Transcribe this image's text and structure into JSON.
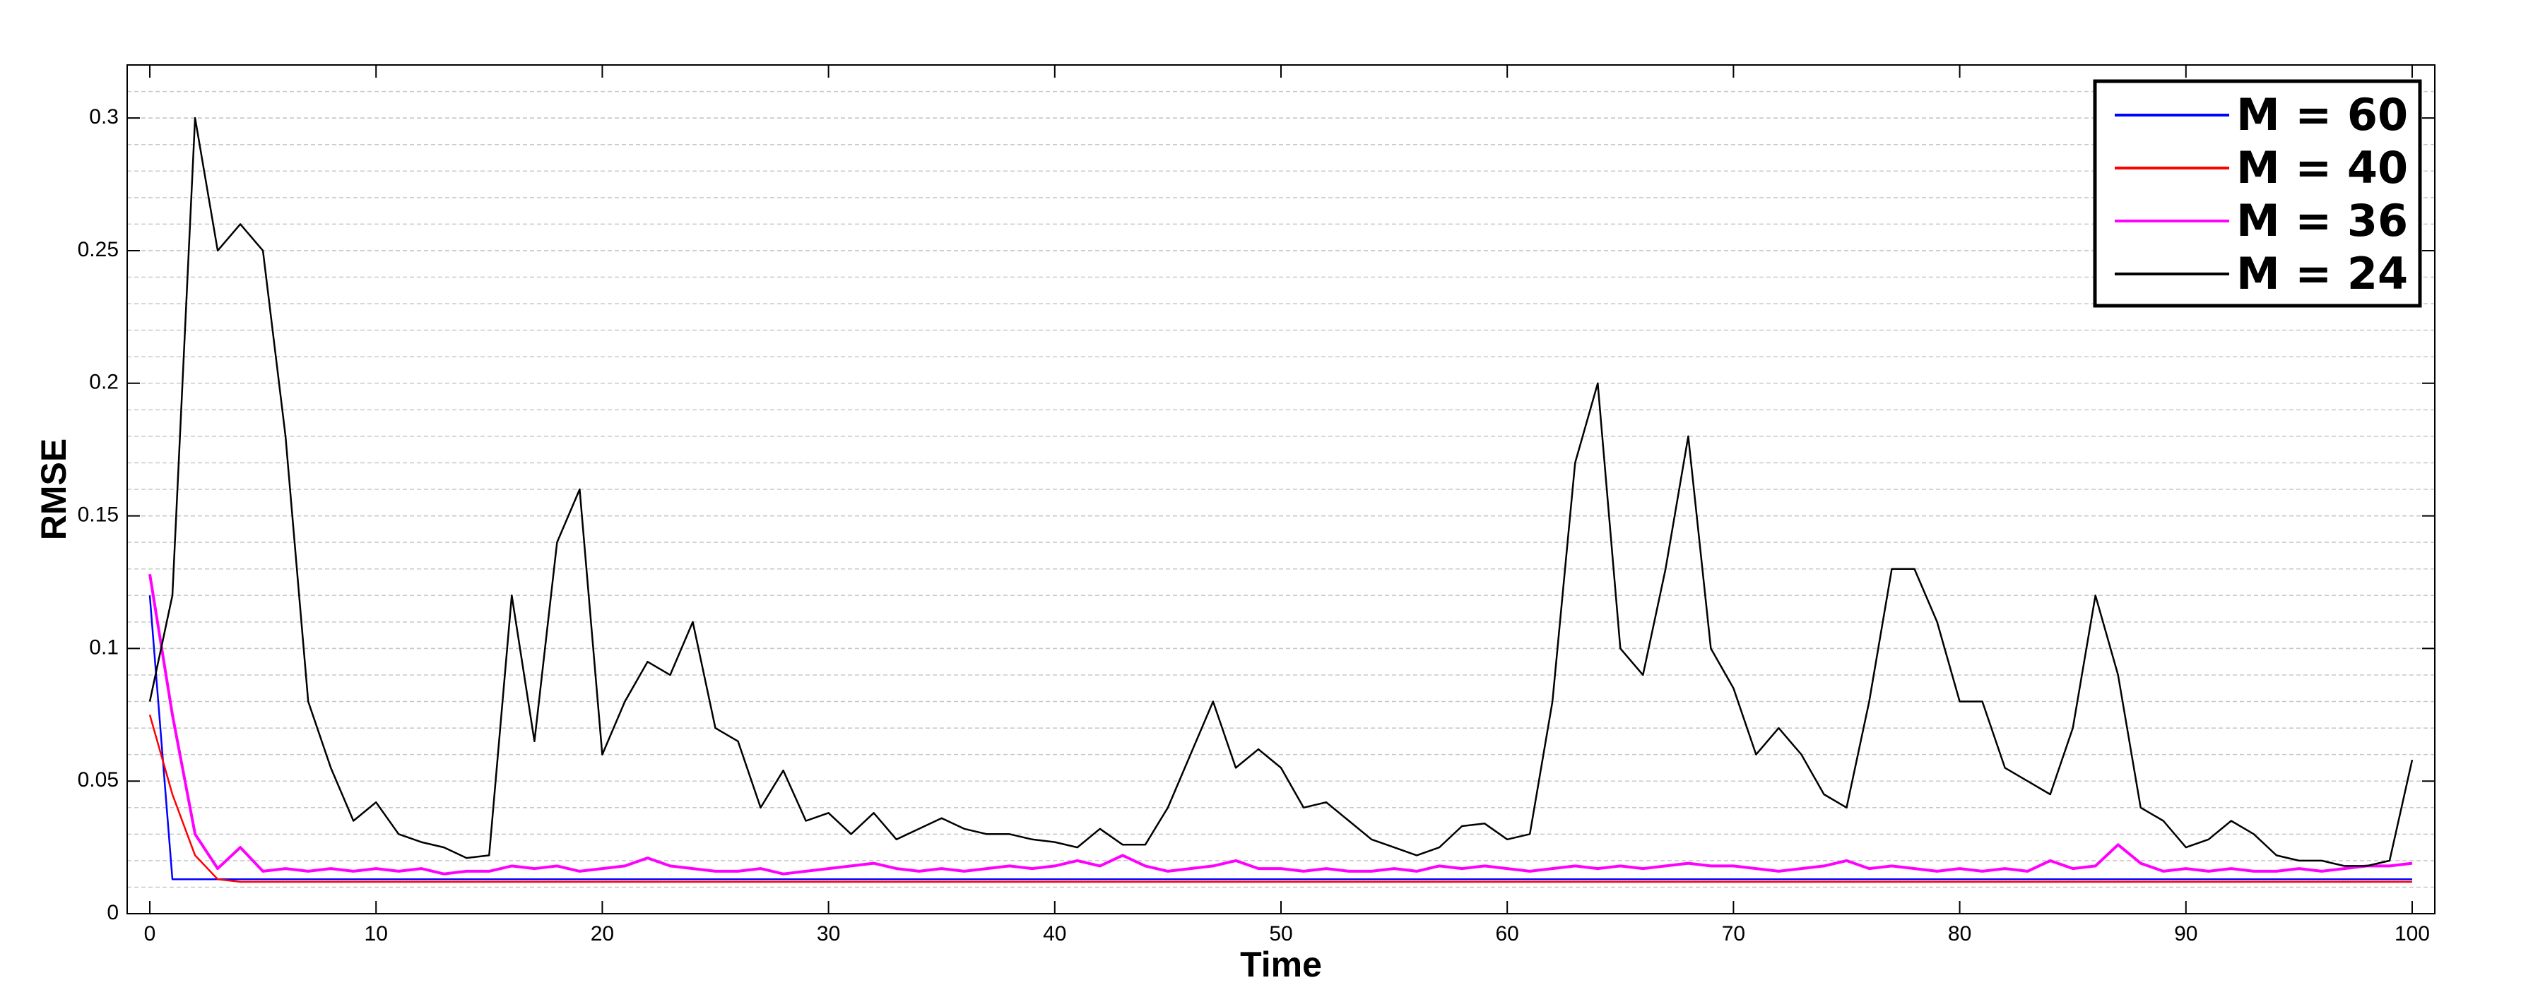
{
  "chart_data": {
    "type": "line",
    "xlabel": "Time",
    "ylabel": "RMSE",
    "x": [
      0,
      1,
      2,
      3,
      4,
      5,
      6,
      7,
      8,
      9,
      10,
      11,
      12,
      13,
      14,
      15,
      16,
      17,
      18,
      19,
      20,
      21,
      22,
      23,
      24,
      25,
      26,
      27,
      28,
      29,
      30,
      31,
      32,
      33,
      34,
      35,
      36,
      37,
      38,
      39,
      40,
      41,
      42,
      43,
      44,
      45,
      46,
      47,
      48,
      49,
      50,
      51,
      52,
      53,
      54,
      55,
      56,
      57,
      58,
      59,
      60,
      61,
      62,
      63,
      64,
      65,
      66,
      67,
      68,
      69,
      70,
      71,
      72,
      73,
      74,
      75,
      76,
      77,
      78,
      79,
      80,
      81,
      82,
      83,
      84,
      85,
      86,
      87,
      88,
      89,
      90,
      91,
      92,
      93,
      94,
      95,
      96,
      97,
      98,
      99,
      100
    ],
    "series": [
      {
        "name": "M = 60",
        "color": "#0000ff",
        "values": [
          0.12,
          0.013,
          0.013,
          0.013,
          0.013,
          0.013,
          0.013,
          0.013,
          0.013,
          0.013,
          0.013,
          0.013,
          0.013,
          0.013,
          0.013,
          0.013,
          0.013,
          0.013,
          0.013,
          0.013,
          0.013,
          0.013,
          0.013,
          0.013,
          0.013,
          0.013,
          0.013,
          0.013,
          0.013,
          0.013,
          0.013,
          0.013,
          0.013,
          0.013,
          0.013,
          0.013,
          0.013,
          0.013,
          0.013,
          0.013,
          0.013,
          0.013,
          0.013,
          0.013,
          0.013,
          0.013,
          0.013,
          0.013,
          0.013,
          0.013,
          0.013,
          0.013,
          0.013,
          0.013,
          0.013,
          0.013,
          0.013,
          0.013,
          0.013,
          0.013,
          0.013,
          0.013,
          0.013,
          0.013,
          0.013,
          0.013,
          0.013,
          0.013,
          0.013,
          0.013,
          0.013,
          0.013,
          0.013,
          0.013,
          0.013,
          0.013,
          0.013,
          0.013,
          0.013,
          0.013,
          0.013,
          0.013,
          0.013,
          0.013,
          0.013,
          0.013,
          0.013,
          0.013,
          0.013,
          0.013,
          0.013,
          0.013,
          0.013,
          0.013,
          0.013,
          0.013,
          0.013,
          0.013,
          0.013,
          0.013,
          0.013
        ]
      },
      {
        "name": "M = 40",
        "color": "#ff0000",
        "values": [
          0.075,
          0.045,
          0.022,
          0.013,
          0.012,
          0.012,
          0.012,
          0.012,
          0.012,
          0.012,
          0.012,
          0.012,
          0.012,
          0.012,
          0.012,
          0.012,
          0.012,
          0.012,
          0.012,
          0.012,
          0.012,
          0.012,
          0.012,
          0.012,
          0.012,
          0.012,
          0.012,
          0.012,
          0.012,
          0.012,
          0.012,
          0.012,
          0.012,
          0.012,
          0.012,
          0.012,
          0.012,
          0.012,
          0.012,
          0.012,
          0.012,
          0.012,
          0.012,
          0.012,
          0.012,
          0.012,
          0.012,
          0.012,
          0.012,
          0.012,
          0.012,
          0.012,
          0.012,
          0.012,
          0.012,
          0.012,
          0.012,
          0.012,
          0.012,
          0.012,
          0.012,
          0.012,
          0.012,
          0.012,
          0.012,
          0.012,
          0.012,
          0.012,
          0.012,
          0.012,
          0.012,
          0.012,
          0.012,
          0.012,
          0.012,
          0.012,
          0.012,
          0.012,
          0.012,
          0.012,
          0.012,
          0.012,
          0.012,
          0.012,
          0.012,
          0.012,
          0.012,
          0.012,
          0.012,
          0.012,
          0.012,
          0.012,
          0.012,
          0.012,
          0.012,
          0.012,
          0.012,
          0.012,
          0.012,
          0.012,
          0.012
        ]
      },
      {
        "name": "M = 36",
        "color": "#ff00ff",
        "values": [
          0.128,
          0.075,
          0.03,
          0.017,
          0.025,
          0.016,
          0.017,
          0.016,
          0.017,
          0.016,
          0.017,
          0.016,
          0.017,
          0.015,
          0.016,
          0.016,
          0.018,
          0.017,
          0.018,
          0.016,
          0.017,
          0.018,
          0.021,
          0.018,
          0.017,
          0.016,
          0.016,
          0.017,
          0.015,
          0.016,
          0.017,
          0.018,
          0.019,
          0.017,
          0.016,
          0.017,
          0.016,
          0.017,
          0.018,
          0.017,
          0.018,
          0.02,
          0.018,
          0.022,
          0.018,
          0.016,
          0.017,
          0.018,
          0.02,
          0.017,
          0.017,
          0.016,
          0.017,
          0.016,
          0.016,
          0.017,
          0.016,
          0.018,
          0.017,
          0.018,
          0.017,
          0.016,
          0.017,
          0.018,
          0.017,
          0.018,
          0.017,
          0.018,
          0.019,
          0.018,
          0.018,
          0.017,
          0.016,
          0.017,
          0.018,
          0.02,
          0.017,
          0.018,
          0.017,
          0.016,
          0.017,
          0.016,
          0.017,
          0.016,
          0.02,
          0.017,
          0.018,
          0.026,
          0.019,
          0.016,
          0.017,
          0.016,
          0.017,
          0.016,
          0.016,
          0.017,
          0.016,
          0.017,
          0.018,
          0.018,
          0.019
        ]
      },
      {
        "name": "M = 24",
        "color": "#000000",
        "values": [
          0.08,
          0.12,
          0.3,
          0.25,
          0.26,
          0.25,
          0.18,
          0.08,
          0.055,
          0.035,
          0.042,
          0.03,
          0.027,
          0.025,
          0.021,
          0.022,
          0.12,
          0.065,
          0.14,
          0.16,
          0.06,
          0.08,
          0.095,
          0.09,
          0.11,
          0.07,
          0.065,
          0.04,
          0.054,
          0.035,
          0.038,
          0.03,
          0.038,
          0.028,
          0.032,
          0.036,
          0.032,
          0.03,
          0.03,
          0.028,
          0.027,
          0.025,
          0.032,
          0.026,
          0.026,
          0.04,
          0.06,
          0.08,
          0.055,
          0.062,
          0.055,
          0.04,
          0.042,
          0.035,
          0.028,
          0.025,
          0.022,
          0.025,
          0.033,
          0.034,
          0.028,
          0.03,
          0.08,
          0.17,
          0.2,
          0.1,
          0.09,
          0.13,
          0.18,
          0.1,
          0.085,
          0.06,
          0.07,
          0.06,
          0.045,
          0.04,
          0.08,
          0.13,
          0.13,
          0.11,
          0.08,
          0.08,
          0.055,
          0.05,
          0.045,
          0.07,
          0.12,
          0.09,
          0.04,
          0.035,
          0.025,
          0.028,
          0.035,
          0.03,
          0.022,
          0.02,
          0.02,
          0.018,
          0.018,
          0.02,
          0.058
        ]
      }
    ],
    "xlim": [
      -1,
      101
    ],
    "ylim": [
      0,
      0.32
    ],
    "xticks": [
      0,
      10,
      20,
      30,
      40,
      50,
      60,
      70,
      80,
      90,
      100
    ],
    "yticks": [
      0,
      0.05,
      0.1,
      0.15,
      0.2,
      0.25,
      0.3
    ],
    "yminor": [
      0.01,
      0.02,
      0.03,
      0.04,
      0.05,
      0.06,
      0.07,
      0.08,
      0.09,
      0.1,
      0.11,
      0.12,
      0.13,
      0.14,
      0.15,
      0.16,
      0.17,
      0.18,
      0.19,
      0.2,
      0.21,
      0.22,
      0.23,
      0.24,
      0.25,
      0.26,
      0.27,
      0.28,
      0.29,
      0.3,
      0.31
    ],
    "grid": true,
    "legend": "upper right"
  }
}
